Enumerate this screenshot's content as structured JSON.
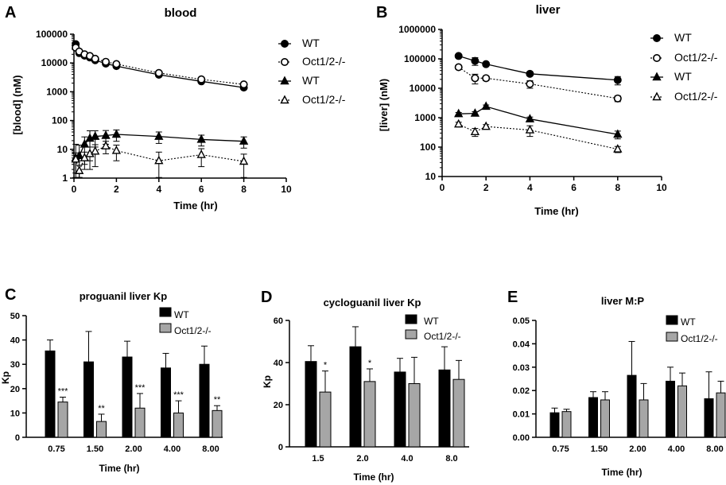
{
  "colors": {
    "wt": "#000000",
    "ko": "#a6a6a6",
    "axis": "#000000"
  },
  "chart_data": [
    {
      "panel": "A",
      "type": "line",
      "title": "blood",
      "xlabel": "Time (hr)",
      "ylabel": "[blood] (nM)",
      "xlim": [
        0,
        10
      ],
      "xticks": [
        "0",
        "2",
        "4",
        "6",
        "8",
        "10"
      ],
      "yscale": "log",
      "ylim": [
        1,
        100000
      ],
      "yticks": [
        "1",
        "10",
        "100",
        "1000",
        "10000",
        "100000"
      ],
      "legend": [
        "WT",
        "Oct1/2-/-",
        "WT",
        "Oct1/2-/-"
      ],
      "series": [
        {
          "name": "WT",
          "drug": "proguanil",
          "marker": "circle-filled",
          "line": "solid",
          "x": [
            0.083,
            0.25,
            0.5,
            0.75,
            1,
            1.5,
            2,
            4,
            6,
            8
          ],
          "y": [
            45000,
            22000,
            18000,
            15500,
            12500,
            9500,
            7800,
            3900,
            2300,
            1400
          ]
        },
        {
          "name": "Oct1/2-/-",
          "drug": "proguanil",
          "marker": "circle-open",
          "line": "dotted",
          "x": [
            0.083,
            0.25,
            0.5,
            0.75,
            1,
            1.5,
            2,
            4,
            6,
            8
          ],
          "y": [
            34000,
            25000,
            20000,
            17500,
            14000,
            11000,
            9200,
            4500,
            2700,
            1800
          ]
        },
        {
          "name": "WT",
          "drug": "cycloguanil",
          "marker": "triangle-filled",
          "line": "solid",
          "x": [
            0.083,
            0.25,
            0.5,
            0.75,
            1,
            1.5,
            2,
            4,
            6,
            8
          ],
          "y": [
            5,
            6,
            15,
            24,
            28,
            30,
            33,
            28,
            22,
            19
          ],
          "err": [
            10,
            8,
            12,
            20,
            16,
            15,
            14,
            12,
            9,
            8
          ]
        },
        {
          "name": "Oct1/2-/-",
          "drug": "cycloguanil",
          "marker": "triangle-open",
          "line": "dotted",
          "x": [
            0.083,
            0.25,
            0.5,
            0.75,
            1,
            1.5,
            2,
            4,
            6,
            8
          ],
          "y": [
            4.5,
            1.8,
            5,
            7,
            8.5,
            13,
            9,
            4,
            6.5,
            3.8
          ],
          "err": [
            3,
            1,
            3,
            5,
            6,
            6,
            5,
            4,
            4,
            3
          ]
        }
      ]
    },
    {
      "panel": "B",
      "type": "line",
      "title": "liver",
      "xlabel": "Time (hr)",
      "ylabel": "[liver] (nM)",
      "xlim": [
        0,
        10
      ],
      "xticks": [
        "0",
        "2",
        "4",
        "6",
        "8",
        "10"
      ],
      "yscale": "log",
      "ylim": [
        10,
        1000000
      ],
      "yticks": [
        "10",
        "100",
        "1000",
        "10000",
        "100000",
        "1000000"
      ],
      "legend": [
        "WT",
        "Oct1/2-/-",
        "WT",
        "Oct1/2-/-"
      ],
      "series": [
        {
          "name": "WT",
          "drug": "proguanil",
          "marker": "circle-filled",
          "line": "solid",
          "x": [
            0.75,
            1.5,
            2,
            4,
            8
          ],
          "y": [
            125000,
            85000,
            66000,
            31000,
            19000
          ],
          "err": [
            15000,
            25000,
            10000,
            4000,
            6000
          ]
        },
        {
          "name": "Oct1/2-/-",
          "drug": "proguanil",
          "marker": "circle-open",
          "line": "dotted",
          "x": [
            0.75,
            1.5,
            2,
            4,
            8
          ],
          "y": [
            52000,
            22000,
            22000,
            14000,
            4500
          ],
          "err": [
            8000,
            8000,
            4000,
            4000,
            1000
          ]
        },
        {
          "name": "WT",
          "drug": "cycloguanil",
          "marker": "triangle-filled",
          "line": "solid",
          "x": [
            0.75,
            1.5,
            2,
            4,
            8
          ],
          "y": [
            1350,
            1400,
            2400,
            900,
            270
          ],
          "err": [
            150,
            200,
            300,
            150,
            80
          ]
        },
        {
          "name": "Oct1/2-/-",
          "drug": "cycloguanil",
          "marker": "triangle-open",
          "line": "dotted",
          "x": [
            0.75,
            1.5,
            2,
            4,
            8
          ],
          "y": [
            600,
            330,
            500,
            380,
            85
          ],
          "err": [
            100,
            100,
            80,
            150,
            20
          ]
        }
      ]
    },
    {
      "panel": "C",
      "type": "bar",
      "title": "proguanil liver Kp",
      "xlabel": "Time (hr)",
      "ylabel": "Kp",
      "categories": [
        "0.75",
        "1.50",
        "2.00",
        "4.00",
        "8.00"
      ],
      "ylim": [
        0,
        50
      ],
      "yticks": [
        "0",
        "10",
        "20",
        "30",
        "40",
        "50"
      ],
      "legend": [
        "WT",
        "Oct1/2-/-"
      ],
      "series": [
        {
          "name": "WT",
          "values": [
            35.5,
            31,
            33,
            28.5,
            30
          ],
          "err": [
            4.5,
            12.5,
            6.5,
            6,
            7.5
          ]
        },
        {
          "name": "Oct1/2-/-",
          "values": [
            14.5,
            6.5,
            12,
            10,
            11
          ],
          "err": [
            2,
            3,
            6,
            5,
            2
          ]
        }
      ],
      "annotations": [
        "***",
        "**",
        "***",
        "***",
        "**"
      ]
    },
    {
      "panel": "D",
      "type": "bar",
      "title": "cycloguanil liver Kp",
      "xlabel": "Time (hr)",
      "ylabel": "Kp",
      "categories": [
        "1.5",
        "2.0",
        "4.0",
        "8.0"
      ],
      "ylim": [
        0,
        60
      ],
      "yticks": [
        "0",
        "20",
        "40",
        "60"
      ],
      "legend": [
        "WT",
        "Oct1/2-/-"
      ],
      "series": [
        {
          "name": "WT",
          "values": [
            40.5,
            47.5,
            35.5,
            36.5
          ],
          "err": [
            7.5,
            9.5,
            6.5,
            11
          ]
        },
        {
          "name": "Oct1/2-/-",
          "values": [
            26,
            31,
            30,
            32
          ],
          "err": [
            10,
            6,
            12.5,
            9
          ]
        }
      ],
      "annotations": [
        "*",
        "*",
        "",
        ""
      ]
    },
    {
      "panel": "E",
      "type": "bar",
      "title": "liver M:P",
      "xlabel": "Time (hr)",
      "ylabel": "",
      "categories": [
        "0.75",
        "1.50",
        "2.00",
        "4.00",
        "8.00"
      ],
      "ylim": [
        0,
        0.05
      ],
      "yticks": [
        "0.00",
        "0.01",
        "0.02",
        "0.03",
        "0.04",
        "0.05"
      ],
      "legend": [
        "WT",
        "Oct1/2-/-"
      ],
      "series": [
        {
          "name": "WT",
          "values": [
            0.0105,
            0.017,
            0.0265,
            0.024,
            0.0165
          ],
          "err": [
            0.002,
            0.0025,
            0.0145,
            0.006,
            0.0115
          ]
        },
        {
          "name": "Oct1/2-/-",
          "values": [
            0.011,
            0.016,
            0.016,
            0.022,
            0.019
          ],
          "err": [
            0.001,
            0.0035,
            0.007,
            0.0055,
            0.005
          ]
        }
      ],
      "annotations": [
        "",
        "",
        "",
        "",
        ""
      ]
    }
  ]
}
